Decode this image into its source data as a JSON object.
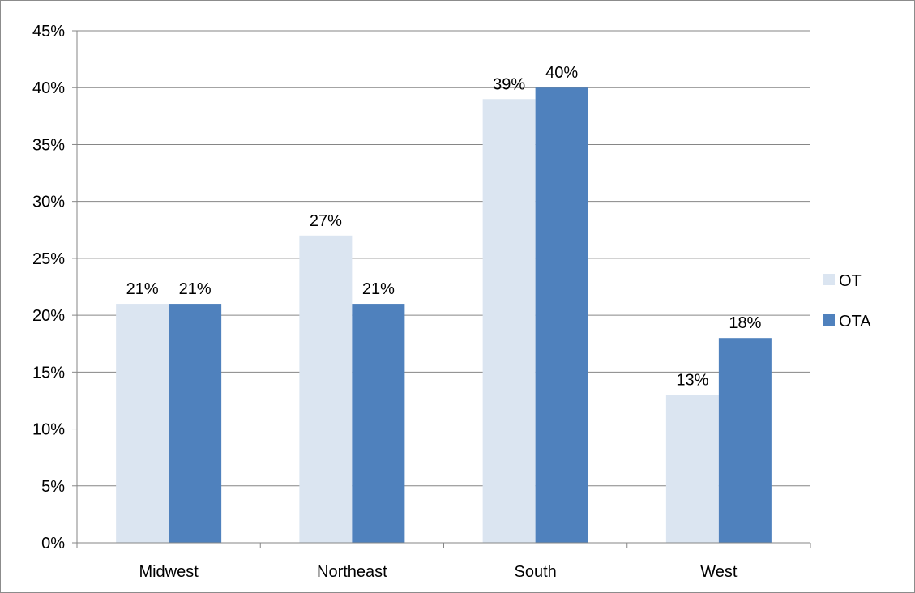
{
  "chart_data": {
    "type": "bar",
    "title": "",
    "xlabel": "",
    "ylabel": "",
    "categories": [
      "Midwest",
      "Northeast",
      "South",
      "West"
    ],
    "series": [
      {
        "name": "OT",
        "values": [
          21,
          27,
          39,
          13
        ],
        "labels": [
          "21%",
          "27%",
          "39%",
          "13%"
        ],
        "color": "#dbe5f1"
      },
      {
        "name": "OTA",
        "values": [
          21,
          21,
          40,
          18
        ],
        "labels": [
          "21%",
          "21%",
          "40%",
          "18%"
        ],
        "color": "#4f81bd"
      }
    ],
    "ylim": [
      0,
      45
    ],
    "yticks": [
      0,
      5,
      10,
      15,
      20,
      25,
      30,
      35,
      40,
      45
    ],
    "ytick_labels": [
      "0%",
      "5%",
      "10%",
      "15%",
      "20%",
      "25%",
      "30%",
      "35%",
      "40%",
      "45%"
    ],
    "grid": true,
    "gridline_color": "#868686",
    "legend_position": "right"
  }
}
